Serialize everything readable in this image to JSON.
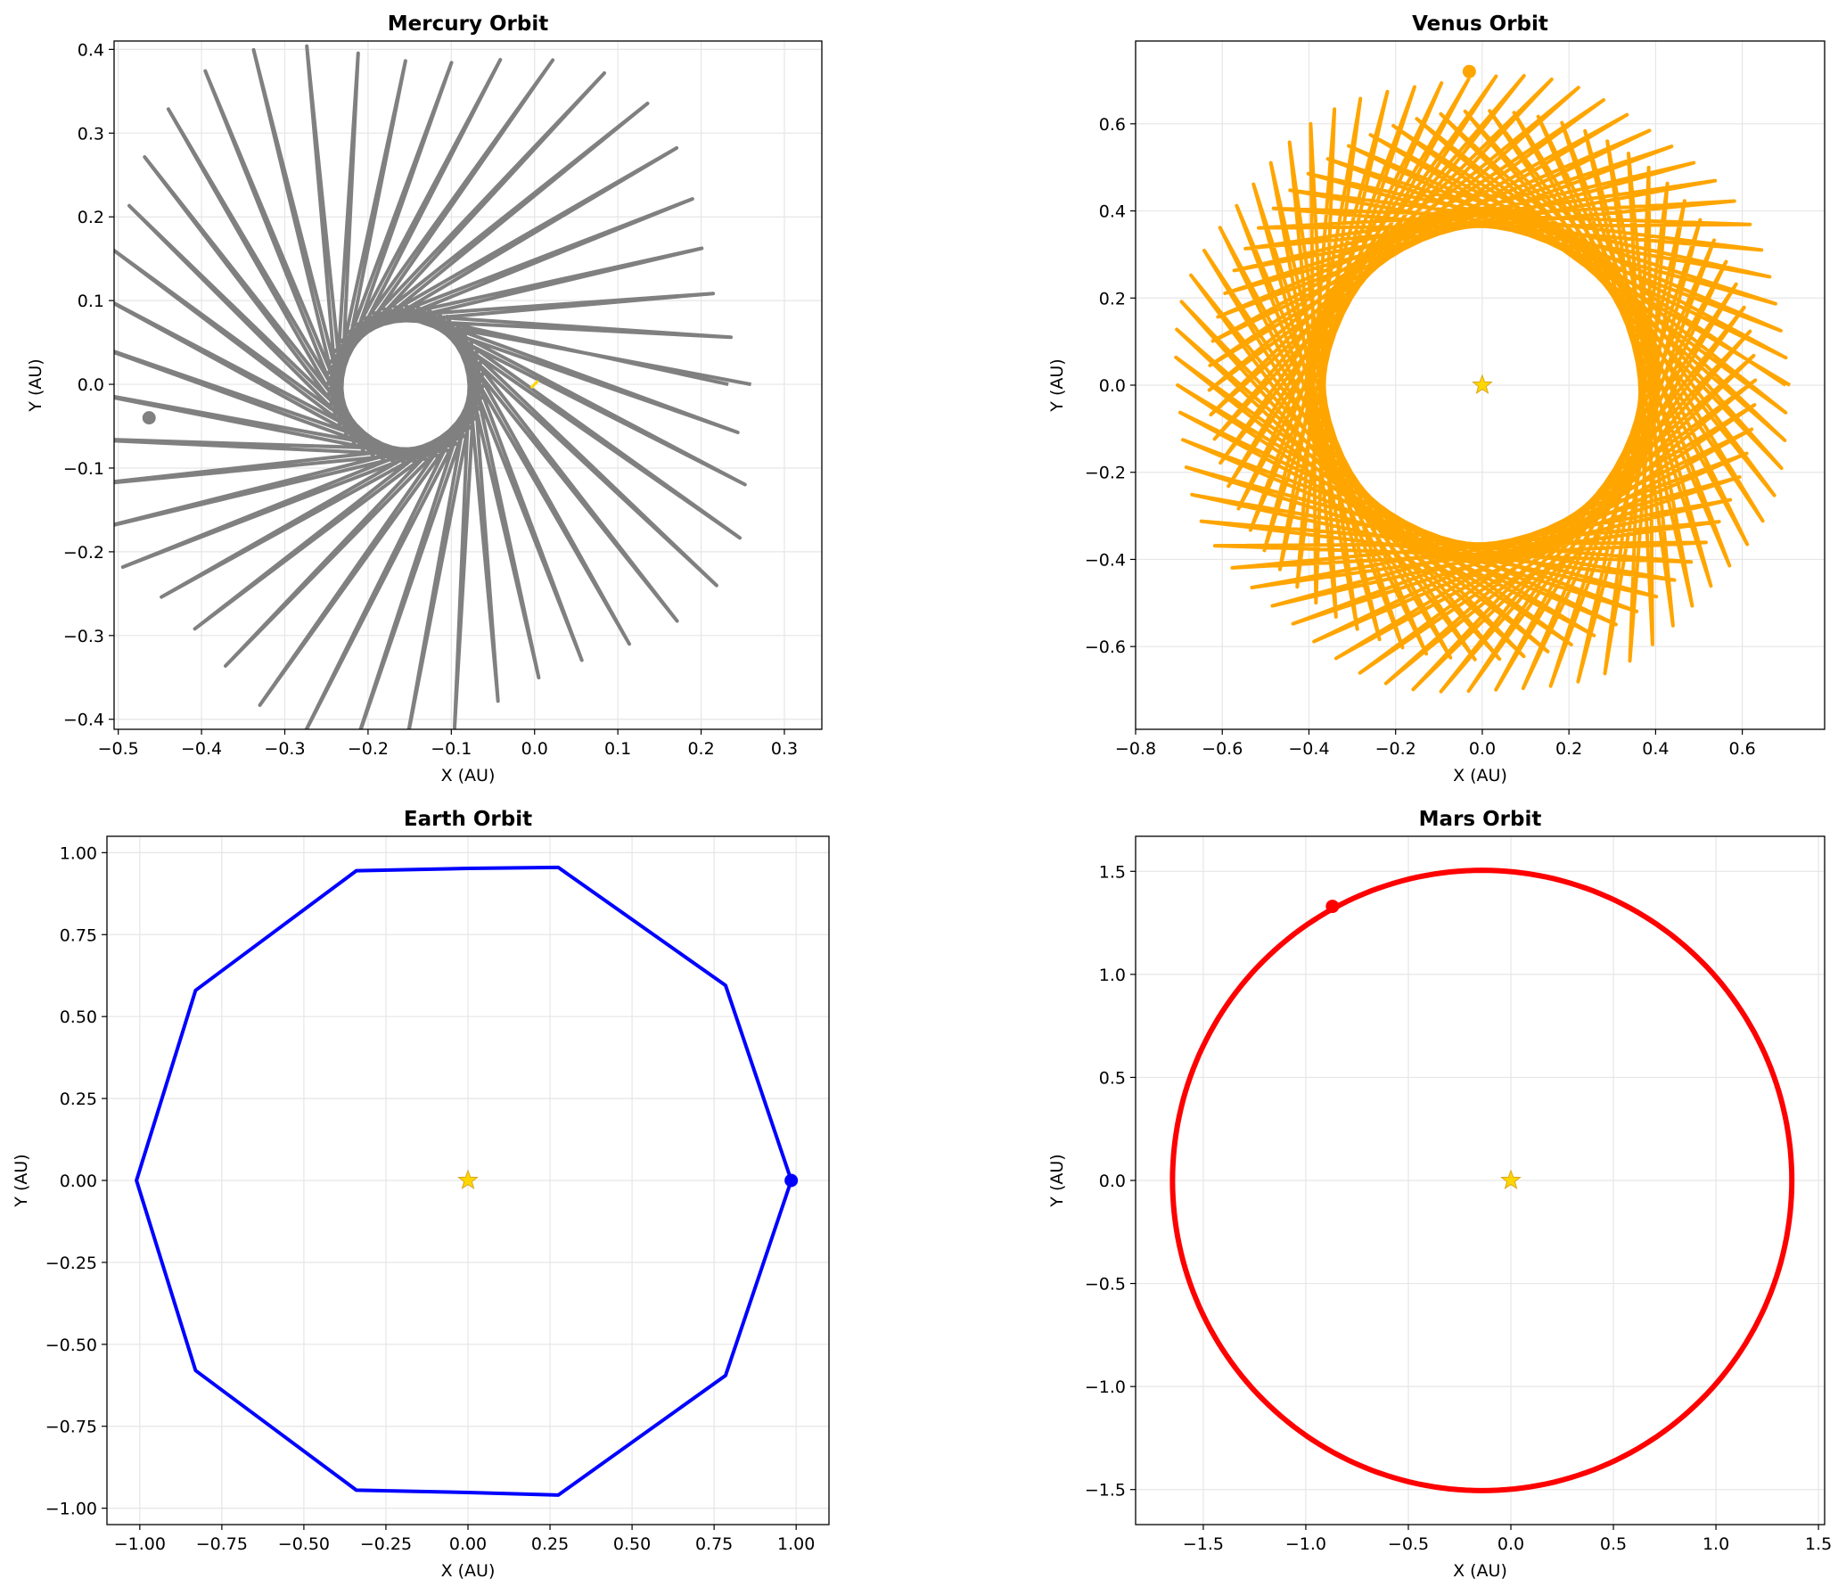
{
  "chart_data": [
    {
      "type": "line",
      "title": "Mercury Orbit",
      "xlabel": "X (AU)",
      "ylabel": "Y (AU)",
      "xlim": [
        -0.505,
        0.345
      ],
      "ylim": [
        -0.412,
        0.41
      ],
      "xticks": [
        -0.5,
        -0.4,
        -0.3,
        -0.2,
        -0.1,
        0.0,
        0.1,
        0.2,
        0.3
      ],
      "xtick_labels": [
        "−0.5",
        "−0.4",
        "−0.3",
        "−0.2",
        "−0.1",
        "0.0",
        "0.1",
        "0.2",
        "0.3"
      ],
      "yticks": [
        -0.4,
        -0.3,
        -0.2,
        -0.1,
        0.0,
        0.1,
        0.2,
        0.3,
        0.4
      ],
      "ytick_labels": [
        "−0.4",
        "−0.3",
        "−0.2",
        "−0.1",
        "0.0",
        "0.1",
        "0.2",
        "0.3",
        "0.4"
      ],
      "grid": true,
      "color": "#808080",
      "orbit": {
        "kind": "rosette",
        "center": [
          -0.155,
          0.0
        ],
        "r_inner": 0.095,
        "r_outer": 0.445,
        "r_outer_variation": 0.06,
        "petals": 44,
        "points_per_lobe": 2
      },
      "current_position": [
        -0.463,
        -0.04
      ],
      "sun": {
        "x": 0.0,
        "y": 0.0,
        "color": "#FFD700"
      }
    },
    {
      "type": "line",
      "title": "Venus Orbit",
      "xlabel": "X (AU)",
      "ylabel": "Y (AU)",
      "xlim": [
        -0.8,
        0.79
      ],
      "ylim": [
        -0.79,
        0.79
      ],
      "xticks": [
        -0.8,
        -0.6,
        -0.4,
        -0.2,
        0.0,
        0.2,
        0.4,
        0.6
      ],
      "xtick_labels": [
        "−0.8",
        "−0.6",
        "−0.4",
        "−0.2",
        "0.0",
        "0.2",
        "0.4",
        "0.6"
      ],
      "yticks": [
        -0.6,
        -0.4,
        -0.2,
        0.0,
        0.2,
        0.4,
        0.6
      ],
      "ytick_labels": [
        "−0.6",
        "−0.4",
        "−0.2",
        "0.0",
        "0.2",
        "0.4",
        "0.6"
      ],
      "grid": true,
      "color": "#FFA500",
      "orbit": {
        "kind": "rosette",
        "center": [
          0.0,
          0.0
        ],
        "r_inner": 0.63,
        "r_outer": 0.72,
        "r_outer_variation": 0.02,
        "petals": 70,
        "points_per_lobe": 2
      },
      "current_position": [
        -0.03,
        0.72
      ],
      "sun": {
        "x": 0.0,
        "y": 0.0,
        "color": "#FFD700"
      }
    },
    {
      "type": "line",
      "title": "Earth Orbit",
      "xlabel": "X (AU)",
      "ylabel": "Y (AU)",
      "xlim": [
        -1.1,
        1.1
      ],
      "ylim": [
        -1.05,
        1.05
      ],
      "xticks": [
        -1.0,
        -0.75,
        -0.5,
        -0.25,
        0.0,
        0.25,
        0.5,
        0.75,
        1.0
      ],
      "xtick_labels": [
        "−1.00",
        "−0.75",
        "−0.50",
        "−0.25",
        "0.00",
        "0.25",
        "0.50",
        "0.75",
        "1.00"
      ],
      "yticks": [
        -1.0,
        -0.75,
        -0.5,
        -0.25,
        0.0,
        0.25,
        0.5,
        0.75,
        1.0
      ],
      "ytick_labels": [
        "−1.00",
        "−0.75",
        "−0.50",
        "−0.25",
        "0.00",
        "0.25",
        "0.50",
        "0.75",
        "1.00"
      ],
      "grid": true,
      "color": "#0000FF",
      "orbit": {
        "kind": "polyline",
        "x": [
          0.985,
          0.785,
          0.275,
          0.0,
          -0.34,
          -0.83,
          -1.01,
          -0.83,
          -0.34,
          0.0,
          0.275,
          0.785,
          0.985
        ],
        "y": [
          0.0,
          0.595,
          0.955,
          0.952,
          0.945,
          0.58,
          0.0,
          -0.58,
          -0.945,
          -0.952,
          -0.96,
          -0.595,
          0.0
        ]
      },
      "current_position": [
        0.985,
        0.0
      ],
      "sun": {
        "x": 0.0,
        "y": 0.0,
        "color": "#FFD700"
      }
    },
    {
      "type": "line",
      "title": "Mars Orbit",
      "xlabel": "X (AU)",
      "ylabel": "Y (AU)",
      "xlim": [
        -1.83,
        1.53
      ],
      "ylim": [
        -1.67,
        1.67
      ],
      "xticks": [
        -1.5,
        -1.0,
        -0.5,
        0.0,
        0.5,
        1.0,
        1.5
      ],
      "xtick_labels": [
        "−1.5",
        "−1.0",
        "−0.5",
        "0.0",
        "0.5",
        "1.0",
        "1.5"
      ],
      "yticks": [
        -1.5,
        -1.0,
        -0.5,
        0.0,
        0.5,
        1.0,
        1.5
      ],
      "ytick_labels": [
        "−1.5",
        "−1.0",
        "−0.5",
        "0.0",
        "0.5",
        "1.0",
        "1.5"
      ],
      "grid": true,
      "color": "#FF0000",
      "orbit": {
        "kind": "ellipse",
        "center": [
          -0.14,
          0.0
        ],
        "rx": 1.51,
        "ry": 1.505
      },
      "current_position": [
        -0.87,
        1.33
      ],
      "sun": {
        "x": 0.0,
        "y": 0.0,
        "color": "#FFD700"
      }
    }
  ]
}
